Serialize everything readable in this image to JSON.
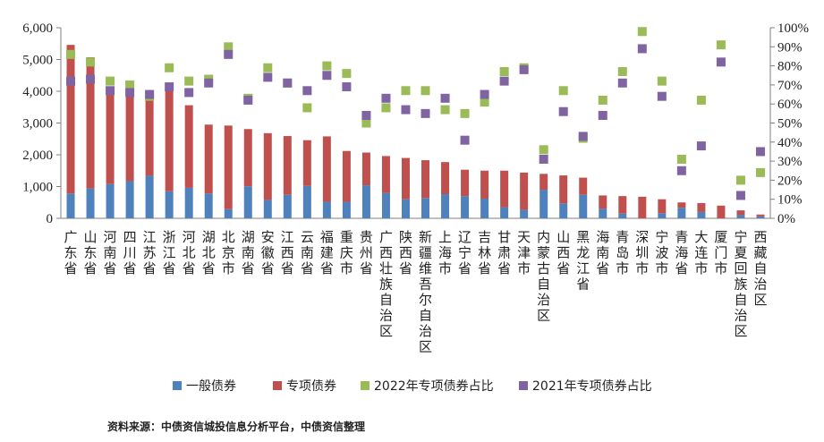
{
  "chart_data": {
    "type": "bar",
    "stacked": true,
    "categories": [
      "广东省",
      "山东省",
      "河南省",
      "四川省",
      "江苏省",
      "浙江省",
      "河北省",
      "湖北省",
      "北京市",
      "湖南省",
      "安徽省",
      "江西省",
      "云南省",
      "福建省",
      "重庆市",
      "贵州省",
      "广西壮族自治区",
      "陕西省",
      "新疆维吾尔自治区",
      "上海市",
      "辽宁省",
      "吉林省",
      "甘肃省",
      "天津市",
      "内蒙古自治区",
      "山西省",
      "黑龙江省",
      "海南省",
      "青岛市",
      "深圳市",
      "宁波市",
      "青海省",
      "大连市",
      "厦门市",
      "宁夏回族自治区",
      "西藏自治区"
    ],
    "series": [
      {
        "name": "一般债券",
        "type": "bar",
        "axis": "left",
        "color": "#4f81bd",
        "values": [
          780,
          940,
          1080,
          1170,
          1340,
          850,
          960,
          780,
          290,
          1010,
          580,
          740,
          1020,
          520,
          520,
          1040,
          800,
          600,
          640,
          760,
          700,
          620,
          350,
          270,
          900,
          470,
          740,
          300,
          150,
          0,
          160,
          330,
          200,
          0,
          100,
          60
        ]
      },
      {
        "name": "专项债券",
        "type": "bar",
        "axis": "left",
        "color": "#c0504d",
        "values": [
          4680,
          4130,
          2900,
          2720,
          2420,
          3220,
          2600,
          2170,
          2630,
          1800,
          2100,
          1850,
          1440,
          2060,
          1600,
          1030,
          1160,
          1300,
          1190,
          1010,
          830,
          880,
          1150,
          1170,
          500,
          880,
          540,
          420,
          550,
          680,
          440,
          170,
          280,
          400,
          150,
          60
        ]
      },
      {
        "name": "2022年专项债券占比",
        "type": "scatter",
        "axis": "right",
        "color": "#9bbb59",
        "values": [
          86,
          82,
          72,
          70,
          64,
          79,
          72,
          73,
          90,
          63,
          79,
          71,
          58,
          80,
          76,
          50,
          58,
          67,
          67,
          57,
          55,
          61,
          77,
          79,
          36,
          67,
          42,
          62,
          77,
          98,
          72,
          31,
          62,
          91,
          20,
          24
        ]
      },
      {
        "name": "2021年专项债券占比",
        "type": "scatter",
        "axis": "right",
        "color": "#8064a2",
        "values": [
          72,
          73,
          67,
          66,
          65,
          69,
          66,
          71,
          86,
          62,
          74,
          71,
          67,
          75,
          69,
          54,
          63,
          57,
          55,
          63,
          41,
          65,
          72,
          78,
          31,
          56,
          43,
          54,
          71,
          89,
          64,
          25,
          38,
          82,
          12,
          35
        ]
      }
    ],
    "yAxisLeft": {
      "min": 0,
      "max": 6000,
      "step": 1000,
      "tickLabels": [
        "0",
        "1,000",
        "2,000",
        "3,000",
        "4,000",
        "5,000",
        "6,000"
      ]
    },
    "yAxisRight": {
      "min": 0,
      "max": 100,
      "step": 10,
      "tickLabels": [
        "0%",
        "10%",
        "20%",
        "30%",
        "40%",
        "50%",
        "60%",
        "70%",
        "80%",
        "90%",
        "100%"
      ]
    },
    "grid": false,
    "legend": "bottom",
    "source": "资料来源：中债资信城投信息分析平台，中债资信整理"
  }
}
